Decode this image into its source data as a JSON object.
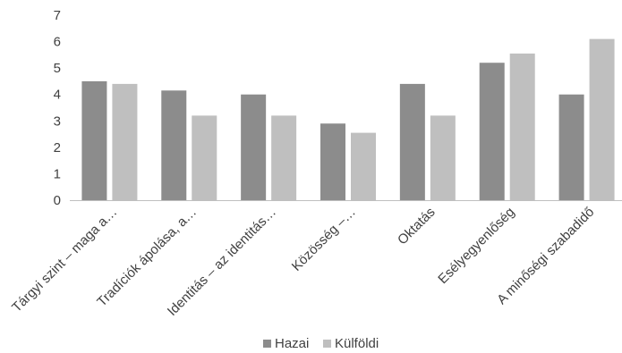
{
  "chart_data": {
    "type": "bar",
    "categories": [
      "Tárgyi szint – maga a…",
      "Tradíciók ápolása, a…",
      "Identitás – az identitás…",
      "Közösség –…",
      "Oktatás",
      "Esélyegyenlőség",
      "A minőségi szabadidő"
    ],
    "series": [
      {
        "name": "Hazai",
        "color": "#8c8c8c",
        "values": [
          4.5,
          4.15,
          4.0,
          2.9,
          4.4,
          5.2,
          4.0
        ]
      },
      {
        "name": "Külföldi",
        "color": "#bfbfbf",
        "values": [
          4.4,
          3.2,
          3.2,
          2.55,
          3.2,
          5.55,
          6.1
        ]
      }
    ],
    "y_ticks": [
      "0",
      "1",
      "2",
      "3",
      "4",
      "5",
      "6",
      "7"
    ],
    "ylim": [
      0,
      7
    ],
    "legend_position": "bottom"
  }
}
